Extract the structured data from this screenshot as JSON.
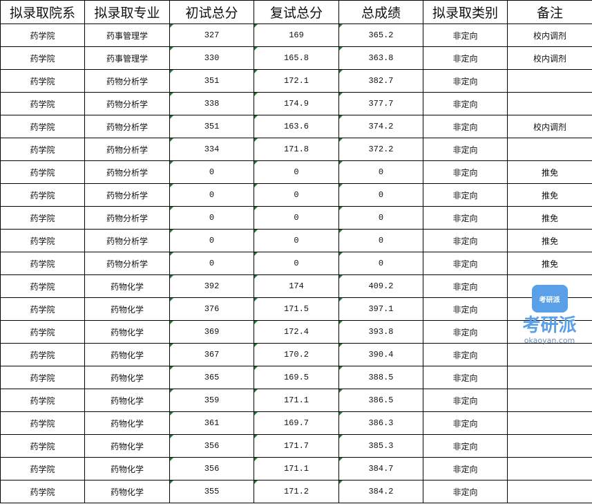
{
  "headers": [
    "拟录取院系",
    "拟录取专业",
    "初试总分",
    "复试总分",
    "总成绩",
    "拟录取类别",
    "备注"
  ],
  "rows": [
    [
      "药学院",
      "药事管理学",
      "327",
      "169",
      "365.2",
      "非定向",
      "校内调剂"
    ],
    [
      "药学院",
      "药事管理学",
      "330",
      "165.8",
      "363.8",
      "非定向",
      "校内调剂"
    ],
    [
      "药学院",
      "药物分析学",
      "351",
      "172.1",
      "382.7",
      "非定向",
      ""
    ],
    [
      "药学院",
      "药物分析学",
      "338",
      "174.9",
      "377.7",
      "非定向",
      ""
    ],
    [
      "药学院",
      "药物分析学",
      "351",
      "163.6",
      "374.2",
      "非定向",
      "校内调剂"
    ],
    [
      "药学院",
      "药物分析学",
      "334",
      "171.8",
      "372.2",
      "非定向",
      ""
    ],
    [
      "药学院",
      "药物分析学",
      "0",
      "0",
      "0",
      "非定向",
      "推免"
    ],
    [
      "药学院",
      "药物分析学",
      "0",
      "0",
      "0",
      "非定向",
      "推免"
    ],
    [
      "药学院",
      "药物分析学",
      "0",
      "0",
      "0",
      "非定向",
      "推免"
    ],
    [
      "药学院",
      "药物分析学",
      "0",
      "0",
      "0",
      "非定向",
      "推免"
    ],
    [
      "药学院",
      "药物分析学",
      "0",
      "0",
      "0",
      "非定向",
      "推免"
    ],
    [
      "药学院",
      "药物化学",
      "392",
      "174",
      "409.2",
      "非定向",
      ""
    ],
    [
      "药学院",
      "药物化学",
      "376",
      "171.5",
      "397.1",
      "非定向",
      ""
    ],
    [
      "药学院",
      "药物化学",
      "369",
      "172.4",
      "393.8",
      "非定向",
      ""
    ],
    [
      "药学院",
      "药物化学",
      "367",
      "170.2",
      "390.4",
      "非定向",
      ""
    ],
    [
      "药学院",
      "药物化学",
      "365",
      "169.5",
      "388.5",
      "非定向",
      ""
    ],
    [
      "药学院",
      "药物化学",
      "359",
      "171.1",
      "386.5",
      "非定向",
      ""
    ],
    [
      "药学院",
      "药物化学",
      "361",
      "169.7",
      "386.3",
      "非定向",
      ""
    ],
    [
      "药学院",
      "药物化学",
      "356",
      "171.7",
      "385.3",
      "非定向",
      ""
    ],
    [
      "药学院",
      "药物化学",
      "356",
      "171.1",
      "384.7",
      "非定向",
      ""
    ],
    [
      "药学院",
      "药物化学",
      "355",
      "171.2",
      "384.2",
      "非定向",
      ""
    ]
  ],
  "watermark": {
    "logo_text": "考研派",
    "url": "okaoyan.com"
  }
}
